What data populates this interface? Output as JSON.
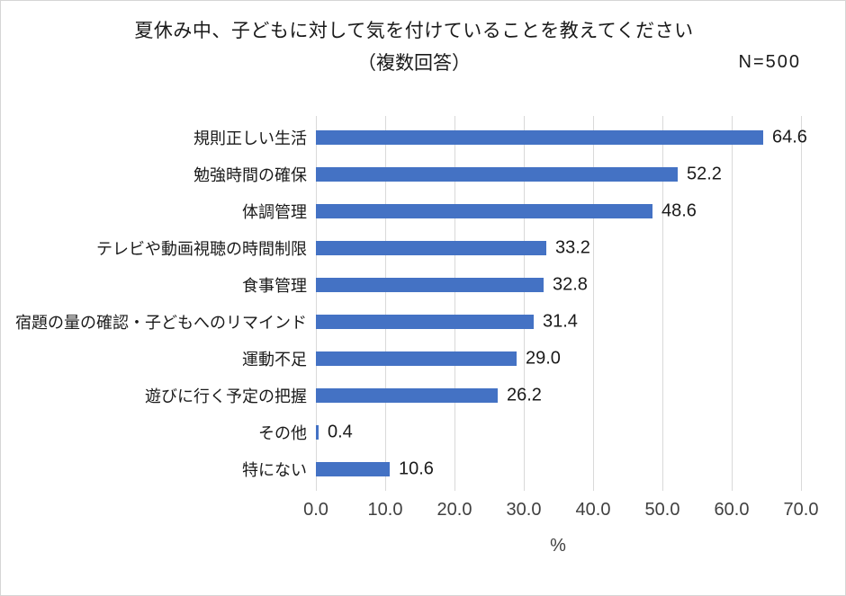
{
  "title": {
    "line1": "夏休み中、子どもに対して気を付けていることを教えてください",
    "line2": "（複数回答）"
  },
  "n_label": "N=500",
  "chart_data": {
    "type": "bar",
    "orientation": "horizontal",
    "title": "夏休み中、子どもに対して気を付けていることを教えてください（複数回答）",
    "n": 500,
    "categories": [
      "規則正しい生活",
      "勉強時間の確保",
      "体調管理",
      "テレビや動画視聴の時間制限",
      "食事管理",
      "宿題の量の確認・子どもへのリマインド",
      "運動不足",
      "遊びに行く予定の把握",
      "その他",
      "特にない"
    ],
    "values": [
      64.6,
      52.2,
      48.6,
      33.2,
      32.8,
      31.4,
      29.0,
      26.2,
      0.4,
      10.6
    ],
    "xlabel": "%",
    "x_ticks": [
      "0.0",
      "10.0",
      "20.0",
      "30.0",
      "40.0",
      "50.0",
      "60.0",
      "70.0"
    ],
    "xlim": [
      0,
      70
    ],
    "grid": true,
    "legend": false,
    "bar_color": "#4472C4",
    "gridline_color": "#D9D9D9"
  }
}
